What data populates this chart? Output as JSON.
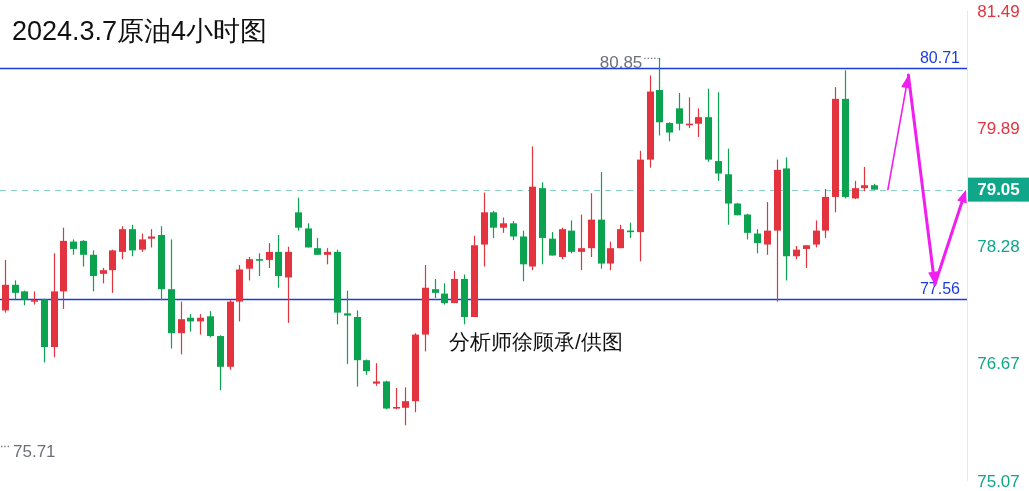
{
  "chart_data": {
    "type": "candlestick",
    "title": "2024.3.7原油4小时图",
    "categories": [
      null,
      null,
      null,
      null,
      null,
      null,
      null,
      null,
      null,
      null,
      null,
      null,
      null,
      null,
      null,
      null,
      null,
      null,
      null,
      null,
      null,
      null,
      null,
      null,
      null,
      null,
      null,
      null,
      null,
      null,
      null,
      null,
      null,
      null,
      null,
      null,
      null,
      null,
      null,
      null,
      null,
      null,
      null,
      null,
      null,
      null,
      null,
      null,
      null,
      null,
      null,
      null,
      null,
      null,
      null,
      null,
      null,
      null,
      null,
      null,
      null,
      null,
      null,
      null,
      null,
      null,
      null,
      null,
      null,
      null,
      null,
      null,
      null,
      null,
      null,
      null,
      null,
      null,
      null,
      null,
      null,
      null,
      null,
      null,
      null,
      null,
      null,
      null,
      null,
      null,
      null,
      null,
      null,
      null,
      null,
      null,
      null,
      null,
      null
    ],
    "ohlc": [
      [
        77.4,
        78.09,
        77.37,
        77.75
      ],
      [
        77.75,
        77.81,
        77.55,
        77.64
      ],
      [
        77.66,
        77.67,
        77.47,
        77.55
      ],
      [
        77.52,
        77.66,
        77.48,
        77.54
      ],
      [
        77.55,
        77.56,
        76.69,
        76.9
      ],
      [
        76.9,
        78.18,
        76.76,
        77.66
      ],
      [
        77.66,
        78.53,
        77.42,
        78.35
      ],
      [
        78.34,
        78.37,
        78.16,
        78.24
      ],
      [
        78.35,
        78.36,
        78.0,
        78.16
      ],
      [
        78.16,
        78.22,
        77.66,
        77.87
      ],
      [
        77.9,
        77.98,
        77.77,
        77.95
      ],
      [
        77.95,
        78.23,
        77.64,
        78.22
      ],
      [
        78.2,
        78.55,
        78.1,
        78.51
      ],
      [
        78.51,
        78.57,
        78.14,
        78.22
      ],
      [
        78.23,
        78.45,
        78.2,
        78.37
      ],
      [
        78.38,
        78.51,
        78.26,
        78.41
      ],
      [
        78.43,
        78.55,
        77.54,
        77.69
      ],
      [
        77.69,
        78.37,
        76.88,
        77.09
      ],
      [
        77.09,
        77.52,
        76.8,
        77.28
      ],
      [
        77.3,
        77.35,
        77.11,
        77.25
      ],
      [
        77.25,
        77.35,
        77.07,
        77.3
      ],
      [
        77.32,
        77.39,
        77.03,
        77.05
      ],
      [
        77.05,
        77.06,
        76.31,
        76.63
      ],
      [
        76.63,
        77.54,
        76.59,
        77.52
      ],
      [
        77.52,
        78.02,
        77.25,
        77.96
      ],
      [
        77.97,
        78.13,
        77.81,
        78.1
      ],
      [
        78.1,
        78.18,
        77.87,
        78.08
      ],
      [
        78.09,
        78.32,
        77.98,
        78.2
      ],
      [
        78.2,
        78.43,
        77.71,
        77.87
      ],
      [
        77.85,
        78.27,
        77.23,
        78.2
      ],
      [
        78.74,
        78.94,
        78.49,
        78.53
      ],
      [
        78.52,
        78.59,
        78.26,
        78.26
      ],
      [
        78.25,
        78.39,
        78.16,
        78.16
      ],
      [
        78.16,
        78.25,
        78.03,
        78.2
      ],
      [
        78.2,
        78.23,
        77.21,
        77.37
      ],
      [
        77.36,
        77.67,
        76.67,
        77.33
      ],
      [
        77.31,
        77.4,
        76.36,
        76.72
      ],
      [
        76.72,
        76.73,
        76.52,
        76.57
      ],
      [
        76.4,
        76.68,
        76.37,
        76.43
      ],
      [
        76.43,
        76.44,
        76.05,
        76.06
      ],
      [
        76.06,
        76.34,
        76.05,
        76.08
      ],
      [
        76.07,
        76.35,
        75.83,
        76.16
      ],
      [
        76.16,
        77.09,
        76.01,
        77.07
      ],
      [
        77.07,
        78.02,
        76.84,
        77.71
      ],
      [
        77.69,
        77.83,
        77.57,
        77.64
      ],
      [
        77.63,
        77.77,
        77.48,
        77.5
      ],
      [
        77.5,
        77.94,
        77.5,
        77.83
      ],
      [
        77.83,
        77.89,
        77.21,
        77.31
      ],
      [
        77.31,
        78.42,
        77.31,
        78.29
      ],
      [
        78.3,
        79.01,
        78.0,
        78.74
      ],
      [
        78.74,
        78.76,
        78.39,
        78.53
      ],
      [
        78.53,
        78.67,
        78.46,
        78.59
      ],
      [
        78.59,
        78.62,
        78.36,
        78.41
      ],
      [
        78.41,
        78.49,
        77.8,
        78.03
      ],
      [
        78.0,
        79.64,
        77.95,
        79.09
      ],
      [
        79.07,
        79.15,
        78.03,
        78.39
      ],
      [
        78.38,
        78.47,
        78.15,
        78.15
      ],
      [
        78.13,
        78.53,
        78.1,
        78.51
      ],
      [
        78.49,
        78.63,
        78.18,
        78.2
      ],
      [
        78.2,
        78.71,
        77.95,
        78.25
      ],
      [
        78.25,
        79.0,
        78.13,
        78.64
      ],
      [
        78.64,
        79.29,
        77.97,
        78.04
      ],
      [
        78.04,
        78.34,
        77.95,
        78.25
      ],
      [
        78.25,
        78.57,
        78.25,
        78.51
      ],
      [
        78.49,
        78.6,
        78.39,
        78.47
      ],
      [
        78.47,
        79.58,
        78.07,
        79.46
      ],
      [
        79.46,
        80.61,
        79.35,
        80.39
      ],
      [
        80.41,
        80.85,
        79.79,
        79.97
      ],
      [
        79.96,
        79.97,
        79.71,
        79.83
      ],
      [
        80.16,
        80.37,
        79.86,
        79.95
      ],
      [
        79.93,
        80.31,
        79.89,
        79.95
      ],
      [
        79.95,
        80.16,
        79.77,
        80.04
      ],
      [
        80.04,
        80.43,
        79.43,
        79.46
      ],
      [
        79.44,
        80.38,
        79.17,
        79.27
      ],
      [
        79.26,
        79.61,
        78.57,
        78.86
      ],
      [
        78.86,
        78.87,
        78.7,
        78.7
      ],
      [
        78.71,
        78.72,
        78.37,
        78.46
      ],
      [
        78.45,
        78.51,
        78.18,
        78.32
      ],
      [
        78.3,
        78.88,
        78.16,
        78.49
      ],
      [
        78.49,
        79.46,
        77.52,
        79.32
      ],
      [
        79.34,
        79.49,
        77.81,
        78.14
      ],
      [
        78.14,
        78.28,
        78.1,
        78.23
      ],
      [
        78.24,
        78.29,
        77.98,
        78.29
      ],
      [
        78.3,
        78.63,
        78.26,
        78.49
      ],
      [
        78.49,
        79.06,
        78.39,
        78.95
      ],
      [
        78.95,
        80.45,
        78.74,
        80.29
      ],
      [
        80.29,
        80.68,
        78.93,
        78.95
      ],
      [
        78.93,
        79.17,
        78.92,
        79.07
      ],
      [
        79.07,
        79.36,
        79.03,
        79.11
      ],
      [
        79.11,
        79.13,
        79.05,
        79.05
      ],
      null,
      null,
      null,
      null,
      null,
      null,
      null,
      null,
      null
    ],
    "colors": [
      "#e2333f",
      "#0ba34f",
      "#0ba34f",
      "#e2333f",
      "#0ba34f",
      "#e2333f",
      "#e2333f",
      "#0ba34f",
      "#0ba34f",
      "#0ba34f",
      "#e2333f",
      "#e2333f",
      "#e2333f",
      "#0ba34f",
      "#e2333f",
      "#e2333f",
      "#0ba34f",
      "#0ba34f",
      "#e2333f",
      "#0ba34f",
      "#e2333f",
      "#0ba34f",
      "#0ba34f",
      "#e2333f",
      "#e2333f",
      "#e2333f",
      "#0ba34f",
      "#e2333f",
      "#0ba34f",
      "#e2333f",
      "#0ba34f",
      "#0ba34f",
      "#0ba34f",
      "#e2333f",
      "#0ba34f",
      "#0ba34f",
      "#0ba34f",
      "#0ba34f",
      "#e2333f",
      "#0ba34f",
      "#e2333f",
      "#e2333f",
      "#e2333f",
      "#e2333f",
      "#0ba34f",
      "#0ba34f",
      "#e2333f",
      "#0ba34f",
      "#e2333f",
      "#e2333f",
      "#0ba34f",
      "#e2333f",
      "#0ba34f",
      "#0ba34f",
      "#e2333f",
      "#0ba34f",
      "#0ba34f",
      "#e2333f",
      "#0ba34f",
      "#e2333f",
      "#e2333f",
      "#0ba34f",
      "#e2333f",
      "#e2333f",
      "#0ba34f",
      "#e2333f",
      "#e2333f",
      "#0ba34f",
      "#0ba34f",
      "#0ba34f",
      "#e2333f",
      "#e2333f",
      "#0ba34f",
      "#0ba34f",
      "#0ba34f",
      "#0ba34f",
      "#0ba34f",
      "#0ba34f",
      "#e2333f",
      "#e2333f",
      "#0ba34f",
      "#e2333f",
      "#e2333f",
      "#e2333f",
      "#e2333f",
      "#e2333f",
      "#0ba34f",
      "#e2333f",
      "#e2333f",
      "#0ba34f",
      null,
      null,
      null,
      null,
      null,
      null,
      null,
      null,
      null
    ],
    "ylim": [
      75.07,
      81.49
    ],
    "yticks": [
      75.07,
      76.67,
      78.28,
      79.89,
      81.49
    ],
    "tick_labels": "y",
    "ref_lines": [
      {
        "axis": "y",
        "value": 80.71,
        "label": "80.71",
        "color": "#1c3ce0",
        "line_style": "solid"
      },
      {
        "axis": "y",
        "value": 77.56,
        "label": "77.56",
        "color": "#1c3ce0",
        "line_style": "solid"
      },
      {
        "axis": "y",
        "value": 79.05,
        "label": "79.05",
        "color": "#0fa68a",
        "line_style": "dashed"
      }
    ],
    "annotations": [
      "80.85",
      "75.71",
      "分析师徐顾承/供图"
    ]
  }
}
